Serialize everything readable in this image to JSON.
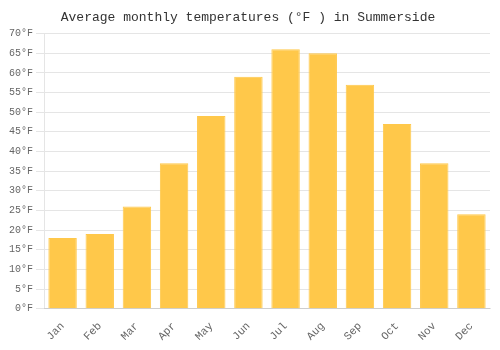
{
  "chart_data": {
    "type": "bar",
    "title": "Average monthly temperatures (°F ) in Summerside",
    "categories": [
      "Jan",
      "Feb",
      "Mar",
      "Apr",
      "May",
      "Jun",
      "Jul",
      "Aug",
      "Sep",
      "Oct",
      "Nov",
      "Dec"
    ],
    "values": [
      18,
      19,
      26,
      37,
      49,
      59,
      66,
      65,
      57,
      47,
      37,
      24
    ],
    "color": "#FFC84A",
    "ylim": [
      0,
      70
    ],
    "yticks": [
      {
        "value": 0,
        "label": "0°F"
      },
      {
        "value": 5,
        "label": "5°F"
      },
      {
        "value": 10,
        "label": "10°F"
      },
      {
        "value": 15,
        "label": "15°F"
      },
      {
        "value": 20,
        "label": "20°F"
      },
      {
        "value": 25,
        "label": "25°F"
      },
      {
        "value": 30,
        "label": "30°F"
      },
      {
        "value": 35,
        "label": "35°F"
      },
      {
        "value": 40,
        "label": "40°F"
      },
      {
        "value": 45,
        "label": "45°F"
      },
      {
        "value": 50,
        "label": "50°F"
      },
      {
        "value": 55,
        "label": "55°F"
      },
      {
        "value": 60,
        "label": "60°F"
      },
      {
        "value": 65,
        "label": "65°F"
      },
      {
        "value": 70,
        "label": "70°F"
      }
    ],
    "grid": true
  }
}
